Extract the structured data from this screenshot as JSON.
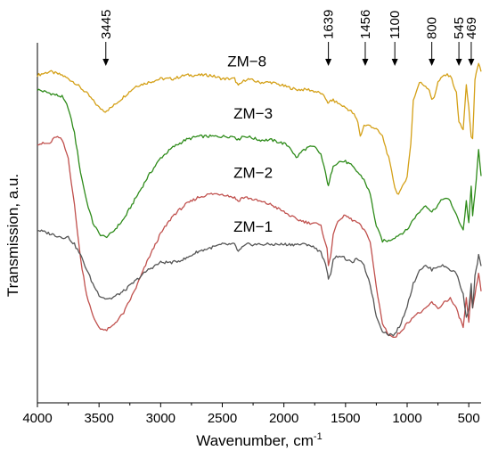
{
  "chart_data": {
    "type": "line",
    "title": "",
    "xlabel": "Wavenumber, cm",
    "xlabel_superscript": "-1",
    "ylabel": "Transmission, a.u.",
    "xlim": [
      4000,
      400
    ],
    "x_reversed": true,
    "xticks": [
      4000,
      3500,
      3000,
      2500,
      2000,
      1500,
      1000,
      500
    ],
    "ylim": [
      0,
      1
    ],
    "y_ticks_shown": false,
    "grid": false,
    "legend": "none (series labelled directly on plot)",
    "peak_markers": [
      {
        "label": "3445",
        "x": 3445
      },
      {
        "label": "1639",
        "x": 1639
      },
      {
        "label": "1456",
        "x": 1340
      },
      {
        "label": "1100",
        "x": 1100
      },
      {
        "label": "800",
        "x": 800
      },
      {
        "label": "545",
        "x": 580
      },
      {
        "label": "469",
        "x": 480
      }
    ],
    "series": [
      {
        "name": "ZM−8",
        "color": "#d4a017",
        "x": [
          4000,
          3900,
          3800,
          3700,
          3600,
          3500,
          3450,
          3400,
          3300,
          3200,
          3100,
          3000,
          2900,
          2800,
          2700,
          2600,
          2500,
          2400,
          2370,
          2340,
          2300,
          2200,
          2100,
          2000,
          1900,
          1800,
          1700,
          1650,
          1639,
          1620,
          1600,
          1550,
          1500,
          1456,
          1430,
          1400,
          1380,
          1350,
          1300,
          1250,
          1200,
          1150,
          1100,
          1080,
          1050,
          1000,
          970,
          950,
          900,
          850,
          820,
          800,
          780,
          750,
          700,
          650,
          600,
          580,
          545,
          520,
          500,
          480,
          469,
          450,
          420,
          400
        ],
        "y": [
          0.91,
          0.92,
          0.91,
          0.89,
          0.86,
          0.82,
          0.81,
          0.82,
          0.85,
          0.88,
          0.89,
          0.9,
          0.9,
          0.91,
          0.91,
          0.91,
          0.9,
          0.9,
          0.88,
          0.89,
          0.9,
          0.89,
          0.89,
          0.88,
          0.87,
          0.87,
          0.86,
          0.84,
          0.83,
          0.84,
          0.84,
          0.83,
          0.82,
          0.81,
          0.8,
          0.78,
          0.74,
          0.77,
          0.77,
          0.76,
          0.74,
          0.68,
          0.6,
          0.58,
          0.59,
          0.63,
          0.72,
          0.84,
          0.89,
          0.88,
          0.87,
          0.84,
          0.85,
          0.89,
          0.91,
          0.91,
          0.86,
          0.78,
          0.76,
          0.88,
          0.82,
          0.74,
          0.73,
          0.9,
          0.94,
          0.92
        ]
      },
      {
        "name": "ZM−3",
        "color": "#2e8b1a",
        "x": [
          4000,
          3900,
          3800,
          3750,
          3700,
          3650,
          3600,
          3550,
          3500,
          3450,
          3400,
          3300,
          3200,
          3100,
          3000,
          2900,
          2800,
          2700,
          2600,
          2500,
          2400,
          2370,
          2340,
          2300,
          2200,
          2100,
          2000,
          1950,
          1900,
          1850,
          1800,
          1750,
          1700,
          1650,
          1639,
          1620,
          1600,
          1550,
          1500,
          1456,
          1400,
          1350,
          1300,
          1250,
          1200,
          1150,
          1100,
          1050,
          1000,
          950,
          900,
          850,
          800,
          750,
          700,
          650,
          600,
          545,
          520,
          500,
          480,
          469,
          450,
          420,
          400
        ],
        "y": [
          0.87,
          0.86,
          0.85,
          0.82,
          0.75,
          0.64,
          0.56,
          0.5,
          0.47,
          0.46,
          0.47,
          0.51,
          0.57,
          0.63,
          0.68,
          0.71,
          0.73,
          0.74,
          0.74,
          0.74,
          0.74,
          0.73,
          0.74,
          0.74,
          0.73,
          0.73,
          0.72,
          0.71,
          0.68,
          0.7,
          0.71,
          0.71,
          0.69,
          0.62,
          0.6,
          0.63,
          0.66,
          0.67,
          0.67,
          0.66,
          0.64,
          0.62,
          0.58,
          0.49,
          0.45,
          0.45,
          0.46,
          0.47,
          0.48,
          0.51,
          0.53,
          0.55,
          0.53,
          0.55,
          0.57,
          0.56,
          0.52,
          0.48,
          0.56,
          0.5,
          0.6,
          0.52,
          0.58,
          0.7,
          0.63
        ]
      },
      {
        "name": "ZM−2",
        "color": "#c0504d",
        "x": [
          4000,
          3900,
          3850,
          3800,
          3750,
          3700,
          3650,
          3600,
          3550,
          3500,
          3450,
          3400,
          3300,
          3200,
          3100,
          3000,
          2900,
          2800,
          2700,
          2600,
          2500,
          2400,
          2370,
          2340,
          2300,
          2200,
          2100,
          2000,
          1900,
          1800,
          1750,
          1700,
          1650,
          1639,
          1620,
          1600,
          1550,
          1500,
          1456,
          1400,
          1350,
          1300,
          1250,
          1200,
          1150,
          1100,
          1050,
          1000,
          950,
          900,
          850,
          800,
          750,
          700,
          650,
          600,
          545,
          520,
          500,
          480,
          469,
          450,
          420,
          400
        ],
        "y": [
          0.72,
          0.72,
          0.74,
          0.73,
          0.68,
          0.55,
          0.4,
          0.3,
          0.24,
          0.21,
          0.2,
          0.21,
          0.25,
          0.32,
          0.4,
          0.47,
          0.52,
          0.55,
          0.57,
          0.58,
          0.58,
          0.57,
          0.56,
          0.57,
          0.57,
          0.56,
          0.55,
          0.53,
          0.51,
          0.5,
          0.5,
          0.49,
          0.43,
          0.38,
          0.41,
          0.47,
          0.51,
          0.52,
          0.51,
          0.5,
          0.48,
          0.45,
          0.32,
          0.22,
          0.19,
          0.18,
          0.2,
          0.22,
          0.24,
          0.25,
          0.26,
          0.28,
          0.26,
          0.28,
          0.29,
          0.26,
          0.21,
          0.29,
          0.22,
          0.31,
          0.26,
          0.3,
          0.36,
          0.31
        ]
      },
      {
        "name": "ZM−1",
        "color": "#555555",
        "x": [
          4000,
          3900,
          3800,
          3750,
          3700,
          3650,
          3600,
          3550,
          3500,
          3450,
          3400,
          3300,
          3200,
          3100,
          3000,
          2900,
          2800,
          2700,
          2600,
          2500,
          2400,
          2370,
          2340,
          2300,
          2200,
          2100,
          2000,
          1900,
          1800,
          1750,
          1700,
          1650,
          1639,
          1620,
          1600,
          1550,
          1500,
          1456,
          1400,
          1350,
          1300,
          1250,
          1200,
          1150,
          1100,
          1050,
          1000,
          950,
          900,
          850,
          800,
          750,
          700,
          650,
          600,
          545,
          520,
          500,
          480,
          469,
          450,
          420,
          400
        ],
        "y": [
          0.48,
          0.47,
          0.46,
          0.46,
          0.44,
          0.41,
          0.37,
          0.33,
          0.3,
          0.29,
          0.29,
          0.31,
          0.34,
          0.37,
          0.39,
          0.39,
          0.4,
          0.42,
          0.43,
          0.44,
          0.44,
          0.42,
          0.43,
          0.44,
          0.44,
          0.44,
          0.44,
          0.44,
          0.44,
          0.43,
          0.42,
          0.37,
          0.34,
          0.36,
          0.4,
          0.41,
          0.4,
          0.39,
          0.4,
          0.38,
          0.33,
          0.24,
          0.2,
          0.19,
          0.19,
          0.22,
          0.27,
          0.33,
          0.37,
          0.38,
          0.37,
          0.38,
          0.38,
          0.37,
          0.36,
          0.3,
          0.24,
          0.26,
          0.33,
          0.26,
          0.35,
          0.41,
          0.38
        ]
      }
    ],
    "series_label_positions": [
      {
        "series": "ZM−8",
        "x": 2300,
        "y": 0.935
      },
      {
        "series": "ZM−3",
        "x": 2250,
        "y": 0.79
      },
      {
        "series": "ZM−2",
        "x": 2250,
        "y": 0.625
      },
      {
        "series": "ZM−1",
        "x": 2250,
        "y": 0.475
      }
    ]
  }
}
